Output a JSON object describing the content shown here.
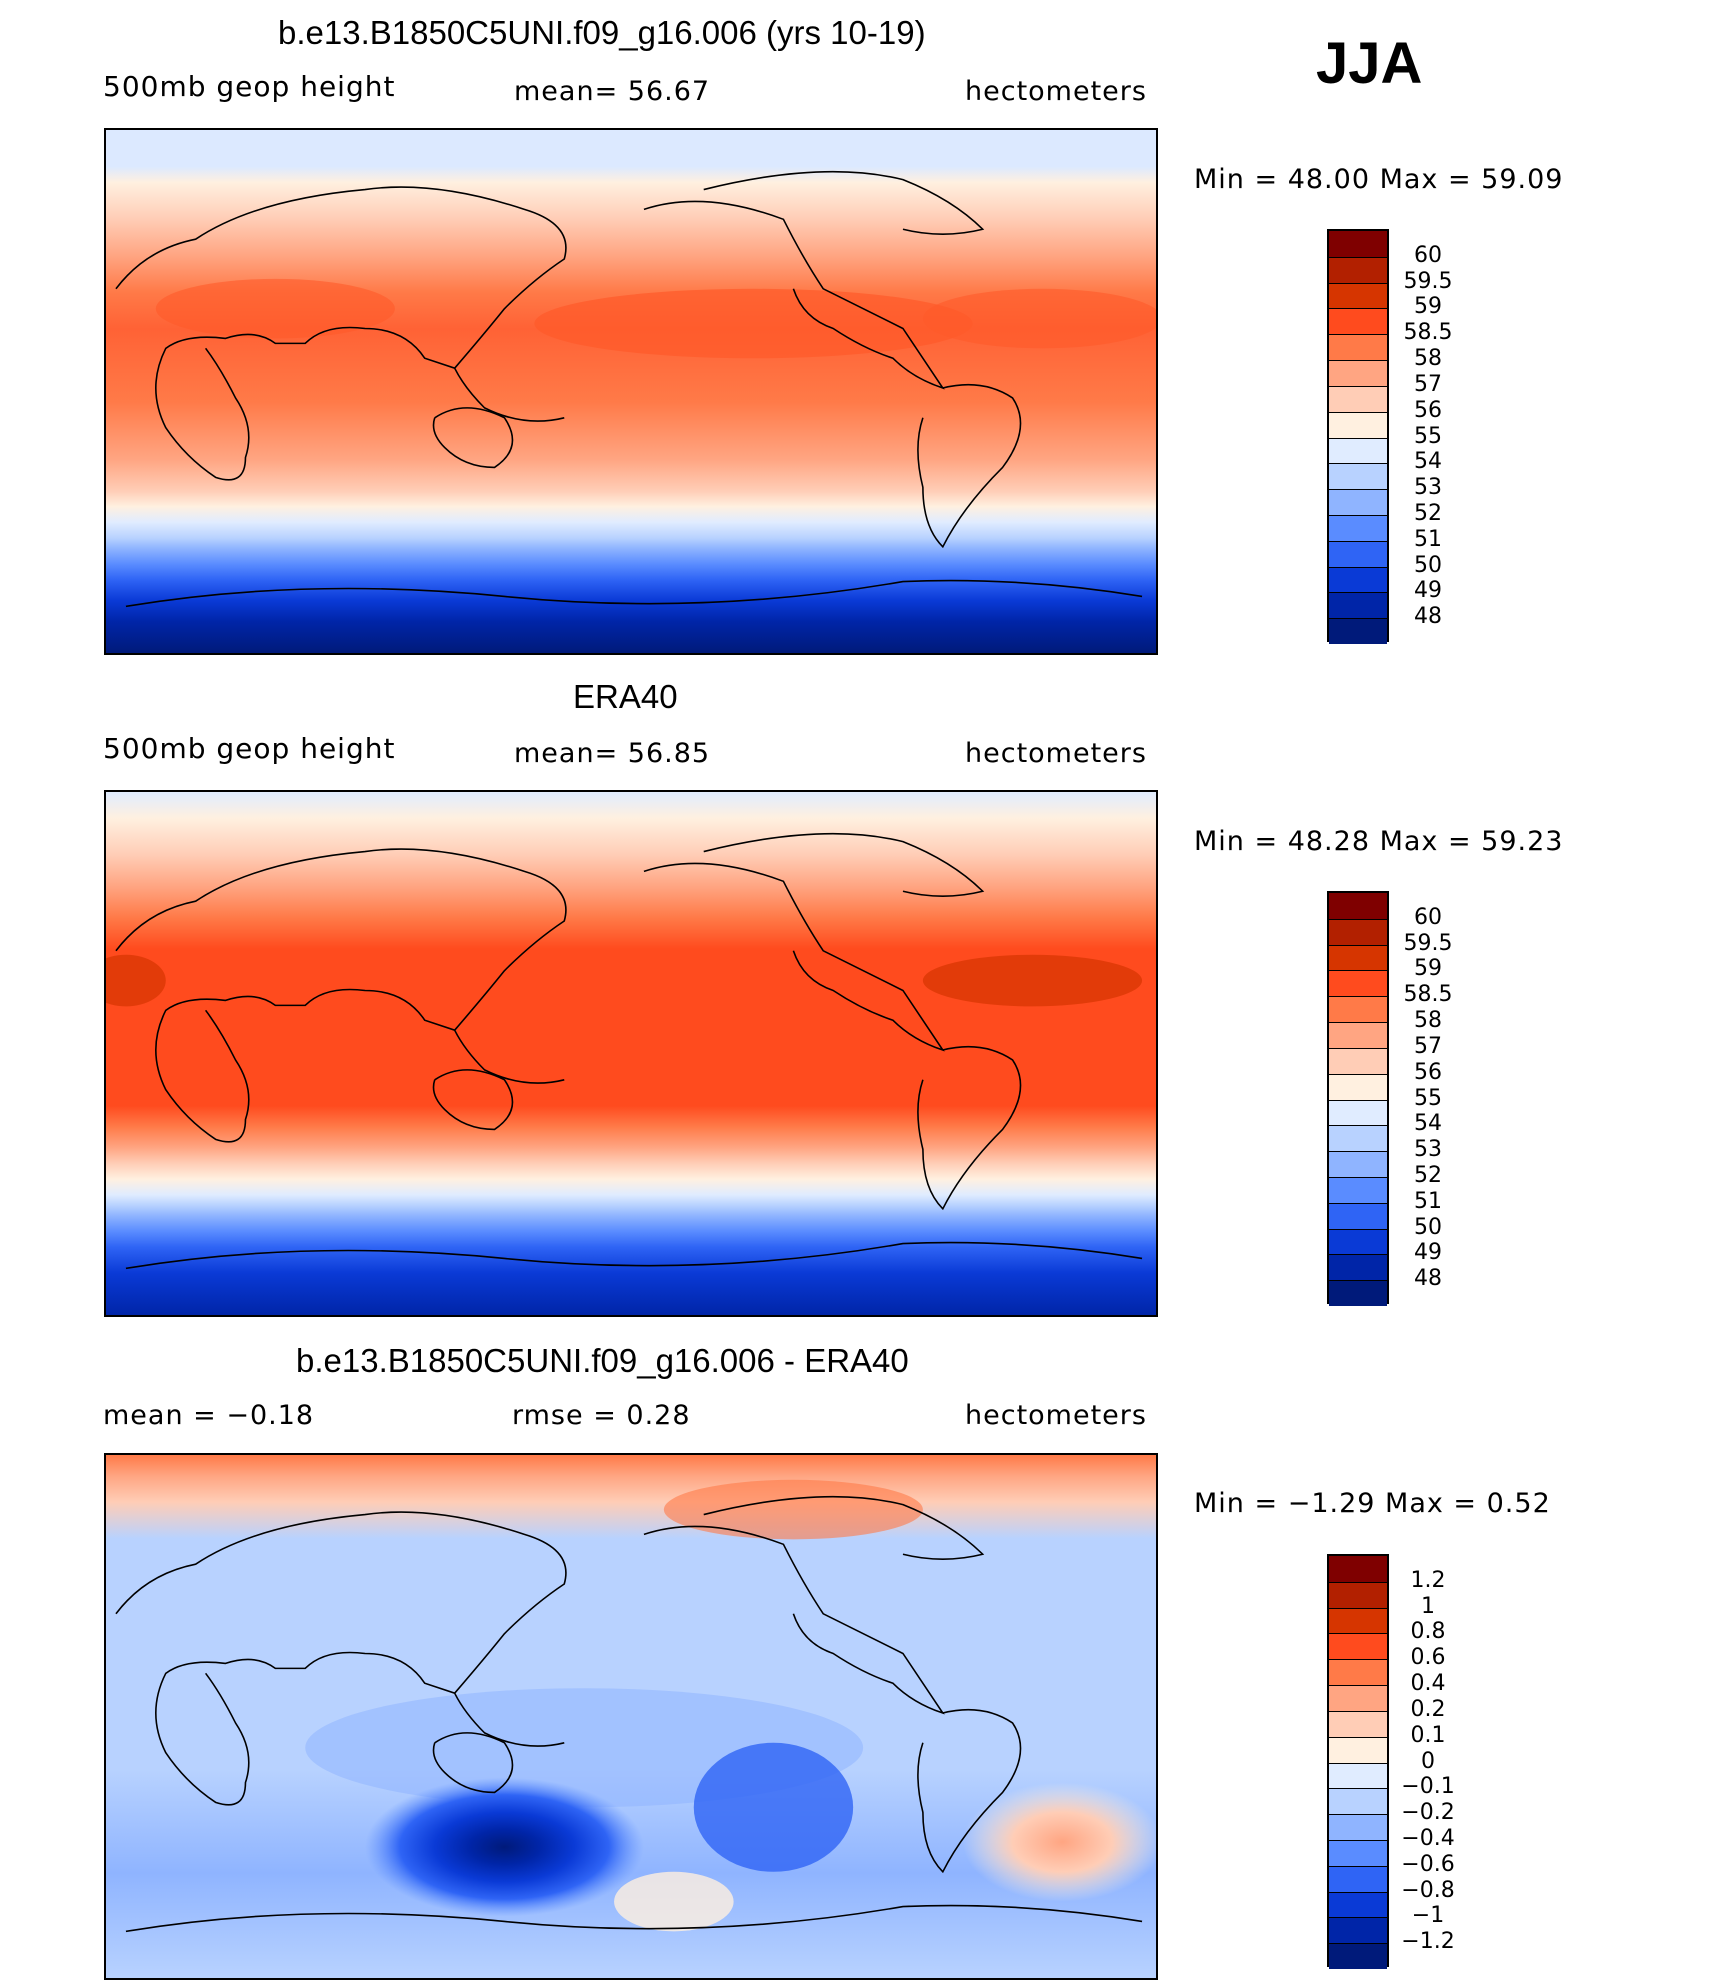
{
  "season": "JJA",
  "panels": [
    {
      "title": "b.e13.B1850C5UNI.f09_g16.006 (yrs 10-19)",
      "left_label": "500mb geop height",
      "center_label": "mean=   56.67",
      "units": "hectometers",
      "minmax": "Min =   48.00 Max =   59.09",
      "colorbar_levels": [
        "60",
        "59.5",
        "59",
        "58.5",
        "58",
        "57",
        "56",
        "55",
        "54",
        "53",
        "52",
        "51",
        "50",
        "49",
        "48"
      ]
    },
    {
      "title": "ERA40",
      "left_label": "500mb geop height",
      "center_label": "mean=   56.85",
      "units": "hectometers",
      "minmax": "Min =   48.28 Max =   59.23",
      "colorbar_levels": [
        "60",
        "59.5",
        "59",
        "58.5",
        "58",
        "57",
        "56",
        "55",
        "54",
        "53",
        "52",
        "51",
        "50",
        "49",
        "48"
      ]
    },
    {
      "title": "b.e13.B1850C5UNI.f09_g16.006 - ERA40",
      "left_label": "mean =   −0.18",
      "center_label": "rmse =    0.28",
      "units": "hectometers",
      "minmax": "Min =  −1.29 Max =    0.52",
      "colorbar_levels": [
        "1.2",
        "1",
        "0.8",
        "0.6",
        "0.4",
        "0.2",
        "0.1",
        "0",
        "−0.1",
        "−0.2",
        "−0.4",
        "−0.6",
        "−0.8",
        "−1",
        "−1.2"
      ]
    }
  ],
  "colors": {
    "palette": [
      "#7f0000",
      "#b22000",
      "#d63500",
      "#ff4b1e",
      "#ff7a48",
      "#ffa582",
      "#ffcdb6",
      "#fff0e0",
      "#e0ecff",
      "#b8d2ff",
      "#8fb4ff",
      "#5a8cff",
      "#2f64f5",
      "#0a3ad6",
      "#0025a8",
      "#001a7a"
    ]
  }
}
